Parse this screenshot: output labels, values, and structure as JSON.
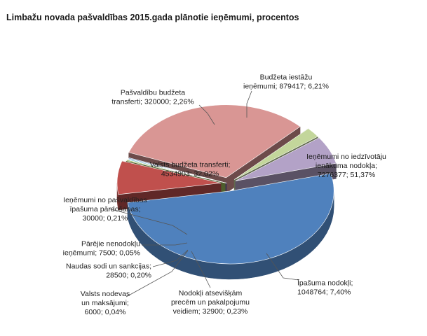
{
  "chart_data": {
    "type": "pie",
    "title": "Limbažu novada pašvaldības 2015.gada plānotie ieņēmumi, procentos",
    "slices": [
      {
        "key": "iin",
        "label_lines": [
          "Ieņēmumi no iedzīvotāju",
          "ienākuma nodokļa;",
          "7276377; 51,37%"
        ],
        "category": "Ieņēmumi no iedzīvotāju ienākuma nodokļa",
        "value": 7276377,
        "percent": "51,37%",
        "percent_value": 51.37,
        "color": "#4f81bd"
      },
      {
        "key": "ipn",
        "label_lines": [
          "Īpašuma nodokļi;",
          "1048764; 7,40%"
        ],
        "category": "Īpašuma nodokļi",
        "value": 1048764,
        "percent": "7,40%",
        "percent_value": 7.4,
        "color": "#c0504d"
      },
      {
        "key": "nan",
        "label_lines": [
          "Nodokļi atsevišķām",
          "precēm un pakalpojumu",
          "veidiem; 32900; 0,23%"
        ],
        "category": "Nodokļi atsevišķām precēm un pakalpojumu veidiem",
        "value": 32900,
        "percent": "0,23%",
        "percent_value": 0.23,
        "color": "#9bbb59"
      },
      {
        "key": "vnm",
        "label_lines": [
          "Valsts nodevas",
          "un maksājumi;",
          "6000; 0,04%"
        ],
        "category": "Valsts nodevas un maksājumi",
        "value": 6000,
        "percent": "0,04%",
        "percent_value": 0.04,
        "color": "#8064a2"
      },
      {
        "key": "nss",
        "label_lines": [
          "Naudas sodi un sankcijas;",
          "28500; 0,20%"
        ],
        "category": "Naudas sodi un sankcijas",
        "value": 28500,
        "percent": "0,20%",
        "percent_value": 0.2,
        "color": "#4bacc6"
      },
      {
        "key": "pnn",
        "label_lines": [
          "Pārējie nenodokļu",
          "ieņēmumi;  7500; 0,05%"
        ],
        "category": "Pārējie nenodokļu ieņēmumi",
        "value": 7500,
        "percent": "0,05%",
        "percent_value": 0.05,
        "color": "#f79646"
      },
      {
        "key": "ipp",
        "label_lines": [
          "Ieņēmumi no pašvaldības",
          "īpašuma pārdošanas;",
          "30000; 0,21%"
        ],
        "category": "Ieņēmumi no pašvaldības īpašuma pārdošanas",
        "value": 30000,
        "percent": "0,21%",
        "percent_value": 0.21,
        "color": "#7f9ec9"
      },
      {
        "key": "vbt",
        "label_lines": [
          "Valsts budžeta transferti;",
          "4534903; 32,02%"
        ],
        "category": "Valsts budžeta transferti",
        "value": 4534903,
        "percent": "32,02%",
        "percent_value": 32.02,
        "color": "#d99694"
      },
      {
        "key": "pbt",
        "label_lines": [
          "Pašvaldību budžeta",
          "transferti; 320000; 2,26%"
        ],
        "category": "Pašvaldību budžeta transferti",
        "value": 320000,
        "percent": "2,26%",
        "percent_value": 2.26,
        "color": "#c3d69b"
      },
      {
        "key": "bii",
        "label_lines": [
          "Budžeta iestāžu",
          "ieņēmumi;  879417; 6,21%"
        ],
        "category": "Budžeta iestāžu ieņēmumi",
        "value": 879417,
        "percent": "6,21%",
        "percent_value": 6.21,
        "color": "#b3a2c7"
      }
    ]
  }
}
